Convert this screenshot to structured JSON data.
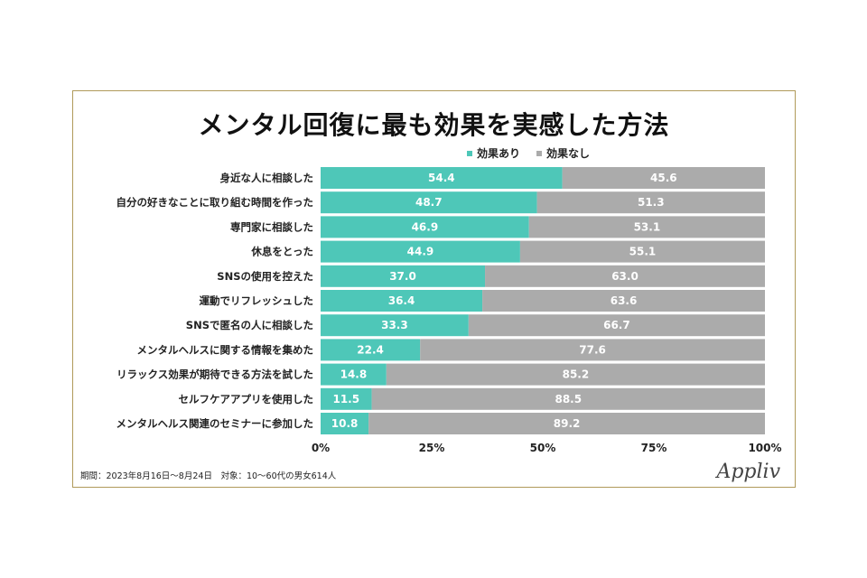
{
  "chart_data": {
    "type": "bar",
    "orientation": "horizontal",
    "stacked": true,
    "title": "メンタル回復に最も効果を実感した方法",
    "categories": [
      "身近な人に相談した",
      "自分の好きなことに取り組む時間を作った",
      "専門家に相談した",
      "休息をとった",
      "SNSの使用を控えた",
      "運動でリフレッシュした",
      "SNSで匿名の人に相談した",
      "メンタルヘルスに関する情報を集めた",
      "リラックス効果が期待できる方法を試した",
      "セルフケアアプリを使用した",
      "メンタルヘルス関連のセミナーに参加した"
    ],
    "series": [
      {
        "name": "効果あり",
        "color": "#4ec7b8",
        "values": [
          54.4,
          48.7,
          46.9,
          44.9,
          37.0,
          36.4,
          33.3,
          22.4,
          14.8,
          11.5,
          10.8
        ],
        "labels": [
          "54.4",
          "48.7",
          "46.9",
          "44.9",
          "37.0",
          "36.4",
          "33.3",
          "22.4",
          "14.8",
          "11.5",
          "10.8"
        ]
      },
      {
        "name": "効果なし",
        "color": "#ababab",
        "values": [
          45.6,
          51.3,
          53.1,
          55.1,
          63.0,
          63.6,
          66.7,
          77.6,
          85.2,
          88.5,
          89.2
        ],
        "labels": [
          "45.6",
          "51.3",
          "53.1",
          "55.1",
          "63.0",
          "63.6",
          "66.7",
          "77.6",
          "85.2",
          "88.5",
          "89.2"
        ]
      }
    ],
    "xlim": [
      0,
      100
    ],
    "xticks": [
      "0%",
      "25%",
      "50%",
      "75%",
      "100%"
    ],
    "grid": false,
    "legend_position": "top-center"
  },
  "footer": {
    "note": "期間：2023年8月16日～8月24日　対象：10～60代の男女614人",
    "logo": "Appliv"
  }
}
